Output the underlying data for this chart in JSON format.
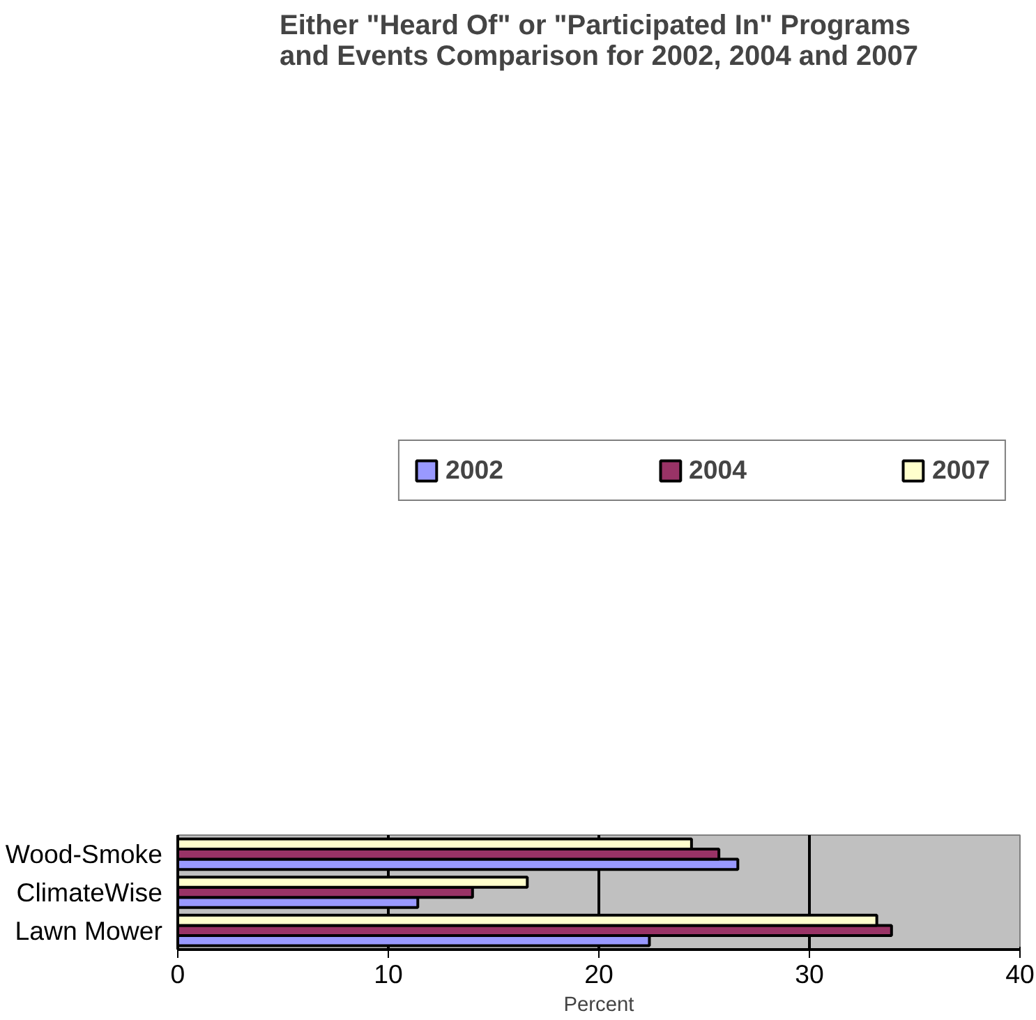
{
  "chart_data": {
    "type": "bar",
    "orientation": "horizontal",
    "title": "Either \"Heard Of\" or \"Participated In\" Programs\nand Events Comparison for 2002, 2004 and 2007",
    "xlabel": "Percent",
    "categories": [
      "Wood-Smoke",
      "ClimateWise",
      "Lawn Mower"
    ],
    "series": [
      {
        "name": "2002",
        "color": "#9999ff",
        "values": [
          26.6,
          11.4,
          22.4
        ]
      },
      {
        "name": "2004",
        "color": "#993366",
        "values": [
          25.7,
          14.0,
          33.9
        ]
      },
      {
        "name": "2007",
        "color": "#ffffcc",
        "values": [
          24.4,
          16.6,
          33.2
        ]
      }
    ],
    "xlim": [
      0,
      40
    ],
    "xticks": [
      0,
      10,
      20,
      30,
      40
    ],
    "grid": "x",
    "legend": "top"
  }
}
